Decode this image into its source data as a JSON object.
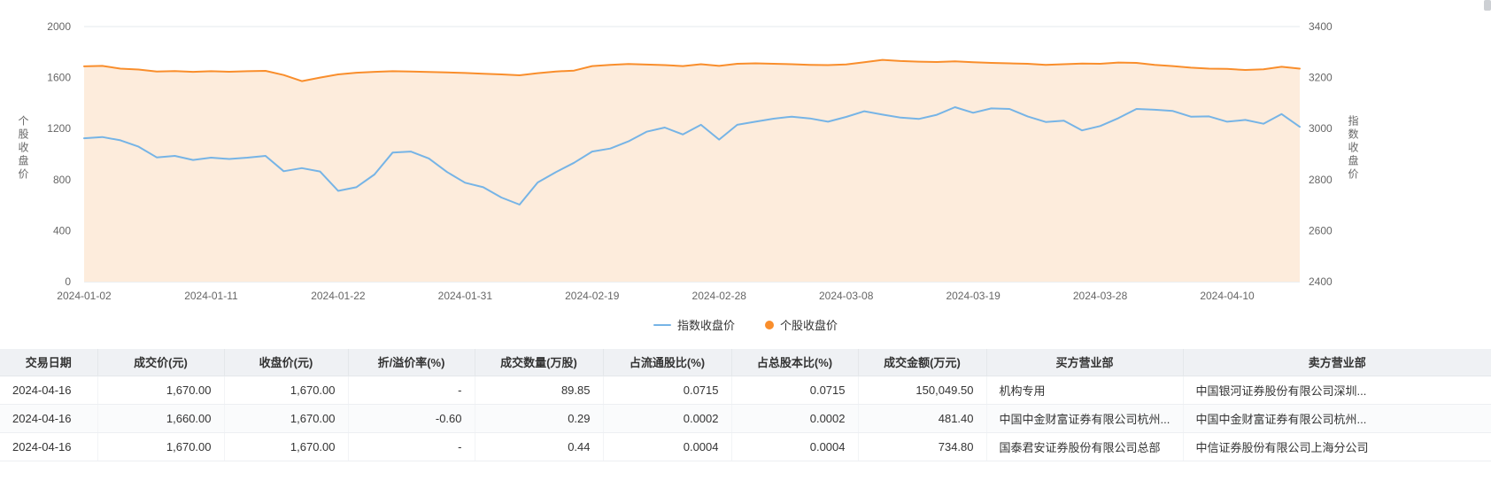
{
  "chart": {
    "left_axis": {
      "name": "个股收盘价",
      "ticks": [
        "2000",
        "1600",
        "1200",
        "800",
        "400",
        "0"
      ]
    },
    "right_axis": {
      "name": "指数收盘价",
      "ticks": [
        "3400",
        "3200",
        "3000",
        "2800",
        "2600",
        "2400"
      ]
    },
    "legend": [
      {
        "label": "指数收盘价",
        "color": "#76b4e6",
        "marker": "line"
      },
      {
        "label": "个股收盘价",
        "color": "#f98e2c",
        "marker": "circle"
      }
    ]
  },
  "chart_data": {
    "type": "line",
    "title": "",
    "xlabel": "",
    "left_ylabel": "个股收盘价",
    "right_ylabel": "指数收盘价",
    "left_ylim": [
      0,
      2000
    ],
    "right_ylim": [
      2400,
      3400
    ],
    "grid": "off",
    "legend_position": "bottom",
    "x": [
      "2024-01-02",
      "2024-01-03",
      "2024-01-04",
      "2024-01-05",
      "2024-01-08",
      "2024-01-09",
      "2024-01-10",
      "2024-01-11",
      "2024-01-12",
      "2024-01-15",
      "2024-01-16",
      "2024-01-17",
      "2024-01-18",
      "2024-01-19",
      "2024-01-22",
      "2024-01-23",
      "2024-01-24",
      "2024-01-25",
      "2024-01-26",
      "2024-01-29",
      "2024-01-30",
      "2024-01-31",
      "2024-02-01",
      "2024-02-02",
      "2024-02-05",
      "2024-02-06",
      "2024-02-07",
      "2024-02-08",
      "2024-02-19",
      "2024-02-20",
      "2024-02-21",
      "2024-02-22",
      "2024-02-23",
      "2024-02-26",
      "2024-02-27",
      "2024-02-28",
      "2024-02-29",
      "2024-03-01",
      "2024-03-04",
      "2024-03-05",
      "2024-03-06",
      "2024-03-07",
      "2024-03-08",
      "2024-03-11",
      "2024-03-12",
      "2024-03-13",
      "2024-03-14",
      "2024-03-15",
      "2024-03-18",
      "2024-03-19",
      "2024-03-20",
      "2024-03-21",
      "2024-03-22",
      "2024-03-25",
      "2024-03-26",
      "2024-03-27",
      "2024-03-28",
      "2024-03-29",
      "2024-04-01",
      "2024-04-02",
      "2024-04-03",
      "2024-04-08",
      "2024-04-09",
      "2024-04-10",
      "2024-04-11",
      "2024-04-12",
      "2024-04-15",
      "2024-04-16"
    ],
    "x_tick_labels": [
      "2024-01-02",
      "2024-01-11",
      "2024-01-22",
      "2024-01-31",
      "2024-02-19",
      "2024-02-28",
      "2024-03-08",
      "2024-03-19",
      "2024-03-28",
      "2024-04-10"
    ],
    "series": [
      {
        "name": "指数收盘价",
        "axis": "right",
        "color": "#76b4e6",
        "values": [
          2962,
          2967,
          2954,
          2929,
          2887,
          2893,
          2877,
          2886,
          2881,
          2886,
          2893,
          2833,
          2845,
          2832,
          2756,
          2770,
          2820,
          2906,
          2910,
          2883,
          2830,
          2788,
          2770,
          2730,
          2702,
          2789,
          2829,
          2866,
          2910,
          2922,
          2950,
          2988,
          3004,
          2977,
          3015,
          2957,
          3015,
          3027,
          3039,
          3047,
          3040,
          3027,
          3046,
          3068,
          3055,
          3043,
          3038,
          3054,
          3084,
          3062,
          3079,
          3077,
          3048,
          3026,
          3031,
          2993,
          3010,
          3041,
          3077,
          3074,
          3069,
          3047,
          3048,
          3027,
          3034,
          3019,
          3057,
          3007
        ]
      },
      {
        "name": "个股收盘价",
        "axis": "left",
        "color": "#f98e2c",
        "area_fill": "#fdecdc",
        "values": [
          1688,
          1692,
          1670,
          1663,
          1648,
          1651,
          1645,
          1650,
          1646,
          1650,
          1653,
          1620,
          1572,
          1600,
          1625,
          1638,
          1645,
          1650,
          1648,
          1644,
          1640,
          1636,
          1630,
          1625,
          1618,
          1635,
          1648,
          1655,
          1690,
          1700,
          1706,
          1702,
          1698,
          1690,
          1705,
          1692,
          1708,
          1712,
          1708,
          1705,
          1700,
          1698,
          1703,
          1720,
          1739,
          1730,
          1725,
          1722,
          1728,
          1720,
          1715,
          1712,
          1708,
          1700,
          1705,
          1710,
          1708,
          1718,
          1715,
          1700,
          1690,
          1678,
          1670,
          1668,
          1660,
          1665,
          1685,
          1670
        ]
      }
    ]
  },
  "table": {
    "columns": [
      {
        "key": "trade_date",
        "label": "交易日期",
        "align": "left"
      },
      {
        "key": "deal_price",
        "label": "成交价(元)",
        "align": "right"
      },
      {
        "key": "close_price",
        "label": "收盘价(元)",
        "align": "right"
      },
      {
        "key": "premium_rate",
        "label": "折/溢价率(%)",
        "align": "right"
      },
      {
        "key": "volume",
        "label": "成交数量(万股)",
        "align": "right"
      },
      {
        "key": "float_ratio",
        "label": "占流通股比(%)",
        "align": "right"
      },
      {
        "key": "total_ratio",
        "label": "占总股本比(%)",
        "align": "right"
      },
      {
        "key": "amount",
        "label": "成交金额(万元)",
        "align": "right"
      },
      {
        "key": "buyer",
        "label": "买方营业部",
        "align": "left"
      },
      {
        "key": "seller",
        "label": "卖方营业部",
        "align": "left"
      }
    ],
    "rows": [
      [
        "2024-04-16",
        "1,670.00",
        "1,670.00",
        "-",
        "89.85",
        "0.0715",
        "0.0715",
        "150,049.50",
        "机构专用",
        "中国银河证券股份有限公司深圳..."
      ],
      [
        "2024-04-16",
        "1,660.00",
        "1,670.00",
        "-0.60",
        "0.29",
        "0.0002",
        "0.0002",
        "481.40",
        "中国中金财富证券有限公司杭州...",
        "中国中金财富证券有限公司杭州..."
      ],
      [
        "2024-04-16",
        "1,670.00",
        "1,670.00",
        "-",
        "0.44",
        "0.0004",
        "0.0004",
        "734.80",
        "国泰君安证券股份有限公司总部",
        "中信证券股份有限公司上海分公司"
      ]
    ]
  }
}
